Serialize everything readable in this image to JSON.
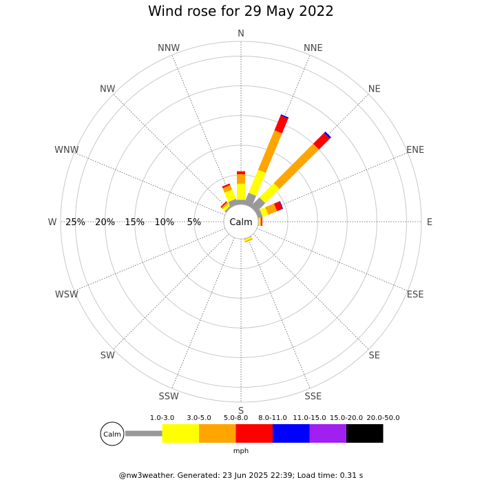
{
  "chart_data": {
    "type": "wind-rose",
    "title": "Wind rose for 29 May 2022",
    "directions": [
      "N",
      "NNE",
      "NE",
      "ENE",
      "E",
      "ESE",
      "SE",
      "SSE",
      "S",
      "SSW",
      "SW",
      "WSW",
      "W",
      "WNW",
      "NW",
      "NNW"
    ],
    "radial_ticks": [
      "5%",
      "10%",
      "15%",
      "20%",
      "25%"
    ],
    "radial_max": 27.5,
    "grid": true,
    "calm_label": "Calm",
    "unit_label": "mph",
    "speed_bins": [
      {
        "label": "1.0-3.0",
        "color": "#999999"
      },
      {
        "label": "3.0-5.0",
        "color": "#ffff00"
      },
      {
        "label": "5.0-8.0",
        "color": "#ffa500"
      },
      {
        "label": "8.0-11.0",
        "color": "#ff0000"
      },
      {
        "label": "11.0-15.0",
        "color": "#0000ff"
      },
      {
        "label": "15.0-20.0",
        "color": "#a020f0"
      },
      {
        "label": "20.0-50.0",
        "color": "#000000"
      }
    ],
    "series_percent": {
      "N": [
        0.8,
        2.7,
        1.6,
        0.5,
        0,
        0,
        0
      ],
      "NNE": [
        2.1,
        4.2,
        7.2,
        2.7,
        0.2,
        0,
        0
      ],
      "NE": [
        2.2,
        3.4,
        9.4,
        2.6,
        0.3,
        0,
        0
      ],
      "ENE": [
        0.8,
        1.0,
        1.6,
        1.0,
        0.1,
        0,
        0
      ],
      "E": [
        0.1,
        0.2,
        0.2,
        0.2,
        0,
        0,
        0
      ],
      "ESE": [
        0,
        0,
        0,
        0,
        0,
        0,
        0
      ],
      "SE": [
        0,
        0,
        0,
        0,
        0,
        0,
        0
      ],
      "SSE": [
        0.1,
        0.3,
        0.2,
        0,
        0,
        0,
        0
      ],
      "S": [
        0,
        0,
        0,
        0,
        0,
        0,
        0
      ],
      "SSW": [
        0,
        0,
        0,
        0,
        0,
        0,
        0
      ],
      "SW": [
        0,
        0,
        0,
        0,
        0,
        0,
        0
      ],
      "WSW": [
        0,
        0,
        0,
        0,
        0,
        0,
        0
      ],
      "W": [
        0,
        0,
        0,
        0,
        0,
        0,
        0
      ],
      "WNW": [
        0,
        0,
        0,
        0,
        0,
        0,
        0
      ],
      "NW": [
        0.3,
        0.5,
        0.3,
        0.2,
        0,
        0,
        0
      ],
      "NNW": [
        1.0,
        1.7,
        0.8,
        0.3,
        0,
        0,
        0
      ]
    }
  },
  "footer": "@nw3weather. Generated: 23 Jun 2025 22:39; Load time: 0.31 s"
}
